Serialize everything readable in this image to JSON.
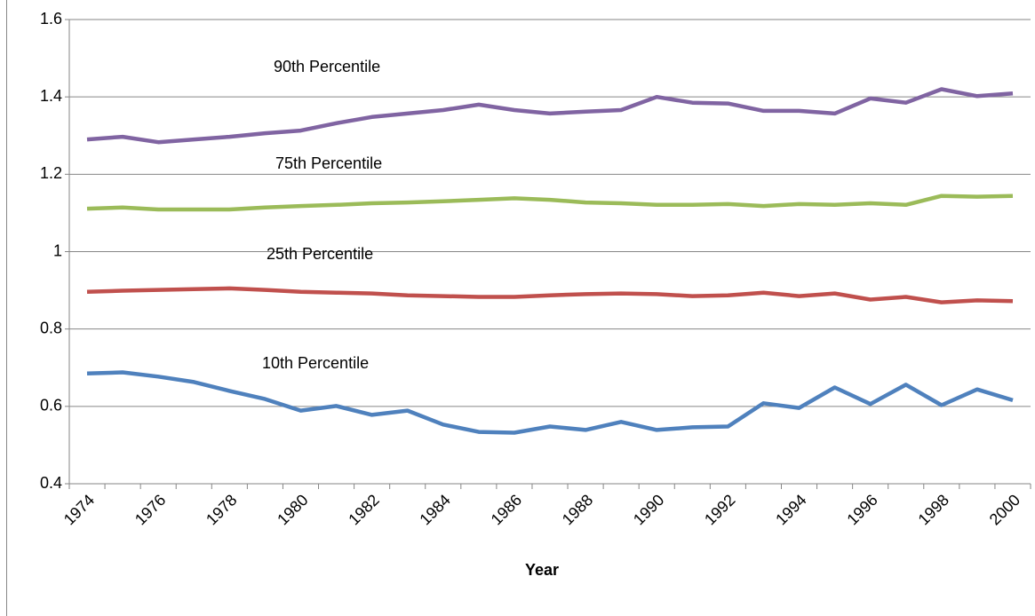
{
  "chart_data": {
    "type": "line",
    "x_label": "Year",
    "categories": [
      "1974",
      null,
      "1976",
      null,
      "1978",
      null,
      "1980",
      null,
      "1982",
      null,
      "1984",
      null,
      "1986",
      null,
      "1988",
      null,
      "1990",
      null,
      "1992",
      null,
      "1994",
      null,
      "1996",
      null,
      "1998",
      null,
      "2000"
    ],
    "ylim": [
      0.4,
      1.6
    ],
    "yticks": [
      0.4,
      0.6,
      0.8,
      1,
      1.2,
      1.4,
      1.6
    ],
    "grid": true,
    "series": [
      {
        "name": "90th Percentile",
        "color": "#8064a2",
        "values": [
          1.29,
          1.297,
          1.283,
          1.29,
          1.297,
          1.306,
          1.313,
          1.332,
          1.348,
          1.357,
          1.366,
          1.38,
          1.366,
          1.357,
          1.362,
          1.366,
          1.4,
          1.385,
          1.383,
          1.364,
          1.364,
          1.357,
          1.396,
          1.385,
          1.42,
          1.402,
          1.409
        ]
      },
      {
        "name": "75th Percentile",
        "color": "#9bbb59",
        "values": [
          1.111,
          1.114,
          1.109,
          1.109,
          1.109,
          1.114,
          1.118,
          1.121,
          1.125,
          1.127,
          1.13,
          1.134,
          1.138,
          1.134,
          1.127,
          1.125,
          1.121,
          1.121,
          1.123,
          1.118,
          1.123,
          1.121,
          1.125,
          1.121,
          1.144,
          1.142,
          1.144
        ]
      },
      {
        "name": "25th Percentile",
        "color": "#c0504d",
        "values": [
          0.896,
          0.899,
          0.901,
          0.903,
          0.905,
          0.901,
          0.896,
          0.894,
          0.892,
          0.887,
          0.885,
          0.883,
          0.883,
          0.887,
          0.89,
          0.892,
          0.89,
          0.885,
          0.887,
          0.894,
          0.885,
          0.892,
          0.876,
          0.883,
          0.869,
          0.874,
          0.872
        ]
      },
      {
        "name": "10th Percentile",
        "color": "#4f81bd",
        "values": [
          0.685,
          0.688,
          0.677,
          0.663,
          0.64,
          0.619,
          0.589,
          0.601,
          0.578,
          0.589,
          0.553,
          0.534,
          0.532,
          0.548,
          0.539,
          0.56,
          0.539,
          0.546,
          0.548,
          0.608,
          0.596,
          0.649,
          0.606,
          0.656,
          0.603,
          0.644,
          0.616
        ]
      }
    ]
  }
}
